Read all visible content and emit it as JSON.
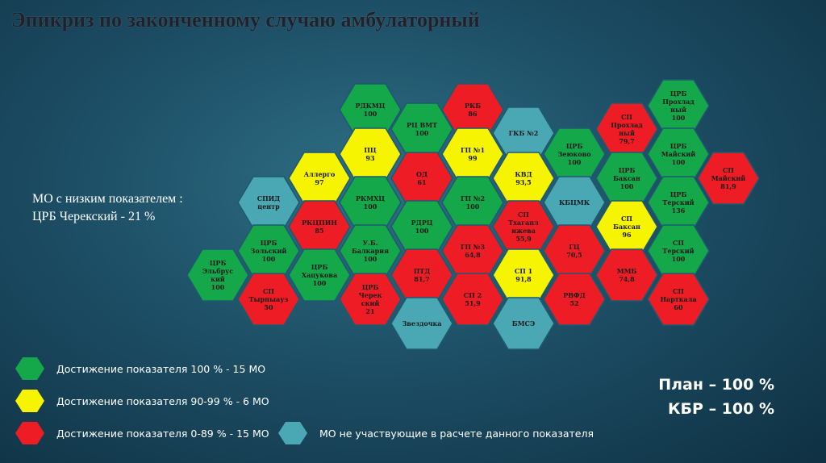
{
  "title": "Эпикриз по законченному случаю амбулаторный",
  "note": {
    "line1": "МО с низким показателем :",
    "line2": "ЦРБ Черекский  - 21 %"
  },
  "colors": {
    "green": "#14a84b",
    "yellow": "#f6f400",
    "red": "#ee1c24",
    "teal": "#4aa8b4"
  },
  "hexes": [
    {
      "lines": [
        "РДКМЦ",
        "100"
      ],
      "status": "green"
    },
    {
      "lines": [
        "РКБ",
        "86"
      ],
      "status": "red"
    },
    {
      "lines": [
        "РЦ ВМТ",
        "100"
      ],
      "status": "green"
    },
    {
      "lines": [
        "ГКБ №2"
      ],
      "status": "teal"
    },
    {
      "lines": [
        "ПЦ",
        "93"
      ],
      "status": "yellow"
    },
    {
      "lines": [
        "ГП №1",
        "99"
      ],
      "status": "yellow"
    },
    {
      "lines": [
        "Аллерго",
        "97"
      ],
      "status": "yellow"
    },
    {
      "lines": [
        "ОД",
        "61"
      ],
      "status": "red"
    },
    {
      "lines": [
        "КВД",
        "93,5"
      ],
      "status": "yellow"
    },
    {
      "lines": [
        "ЦРБ",
        "Зеюково",
        "100"
      ],
      "status": "green"
    },
    {
      "lines": [
        "СП",
        "Прохлад",
        "ный",
        "79,7"
      ],
      "status": "red"
    },
    {
      "lines": [
        "ЦРБ",
        "Прохлад",
        "ный",
        "100"
      ],
      "status": "green"
    },
    {
      "lines": [
        "СПИД",
        "центр"
      ],
      "status": "teal"
    },
    {
      "lines": [
        "РКМХЦ",
        "100"
      ],
      "status": "green"
    },
    {
      "lines": [
        "ГП №2",
        "100"
      ],
      "status": "green"
    },
    {
      "lines": [
        "КБЦМК"
      ],
      "status": "teal"
    },
    {
      "lines": [
        "ЦРБ",
        "Баксан",
        "100"
      ],
      "status": "green"
    },
    {
      "lines": [
        "ЦРБ",
        "Майский",
        "100"
      ],
      "status": "green"
    },
    {
      "lines": [
        "СП",
        "Майский",
        "81,9"
      ],
      "status": "red"
    },
    {
      "lines": [
        "РКЦПИН",
        "85"
      ],
      "status": "red"
    },
    {
      "lines": [
        "РДРЦ",
        "100"
      ],
      "status": "green"
    },
    {
      "lines": [
        "СП",
        "Тхагапл",
        "ижева",
        "55,9"
      ],
      "status": "red"
    },
    {
      "lines": [
        "СП",
        "Баксан",
        "96"
      ],
      "status": "yellow"
    },
    {
      "lines": [
        "ЦРБ",
        "Терский",
        "136"
      ],
      "status": "green"
    },
    {
      "lines": [
        "ЦРБ",
        "Зольский",
        "100"
      ],
      "status": "green"
    },
    {
      "lines": [
        "У.Б.",
        "Балкария",
        "100"
      ],
      "status": "green"
    },
    {
      "lines": [
        "ГП №3",
        "64,8"
      ],
      "status": "red"
    },
    {
      "lines": [
        "ГЦ",
        "70,5"
      ],
      "status": "red"
    },
    {
      "lines": [
        "СП",
        "Терский",
        "100"
      ],
      "status": "green"
    },
    {
      "lines": [
        "ЦРБ",
        "Эльбрус",
        "кий",
        "100"
      ],
      "status": "green"
    },
    {
      "lines": [
        "ЦРБ",
        "Хацукова",
        "100"
      ],
      "status": "green"
    },
    {
      "lines": [
        "ПТД",
        "81,7"
      ],
      "status": "red"
    },
    {
      "lines": [
        "СП 1",
        "91,8"
      ],
      "status": "yellow"
    },
    {
      "lines": [
        "ММБ",
        "74,8"
      ],
      "status": "red"
    },
    {
      "lines": [
        "СП",
        "Тырныауз",
        "50"
      ],
      "status": "red"
    },
    {
      "lines": [
        "ЦРБ",
        "Черек",
        "ский",
        "21"
      ],
      "status": "red"
    },
    {
      "lines": [
        "СП 2",
        "51,9"
      ],
      "status": "red"
    },
    {
      "lines": [
        "РВФД",
        "52"
      ],
      "status": "red"
    },
    {
      "lines": [
        "СП",
        "Нарткала",
        "60"
      ],
      "status": "red"
    },
    {
      "lines": [
        "Звездочка"
      ],
      "status": "teal"
    },
    {
      "lines": [
        "БМСЭ"
      ],
      "status": "teal"
    }
  ],
  "legend": [
    {
      "label": "Достижение показателя 100 % - 15 МО",
      "color": "green"
    },
    {
      "label": "Достижение показателя 90-99 % - 6 МО",
      "color": "yellow"
    },
    {
      "label": "Достижение показателя 0-89 % - 15 МО",
      "color": "red"
    },
    {
      "label": "МО не участвующие в расчете данного показателя",
      "color": "teal"
    }
  ],
  "summary": {
    "plan": "План – 100 %",
    "kbr": "КБР  – 100 %"
  }
}
